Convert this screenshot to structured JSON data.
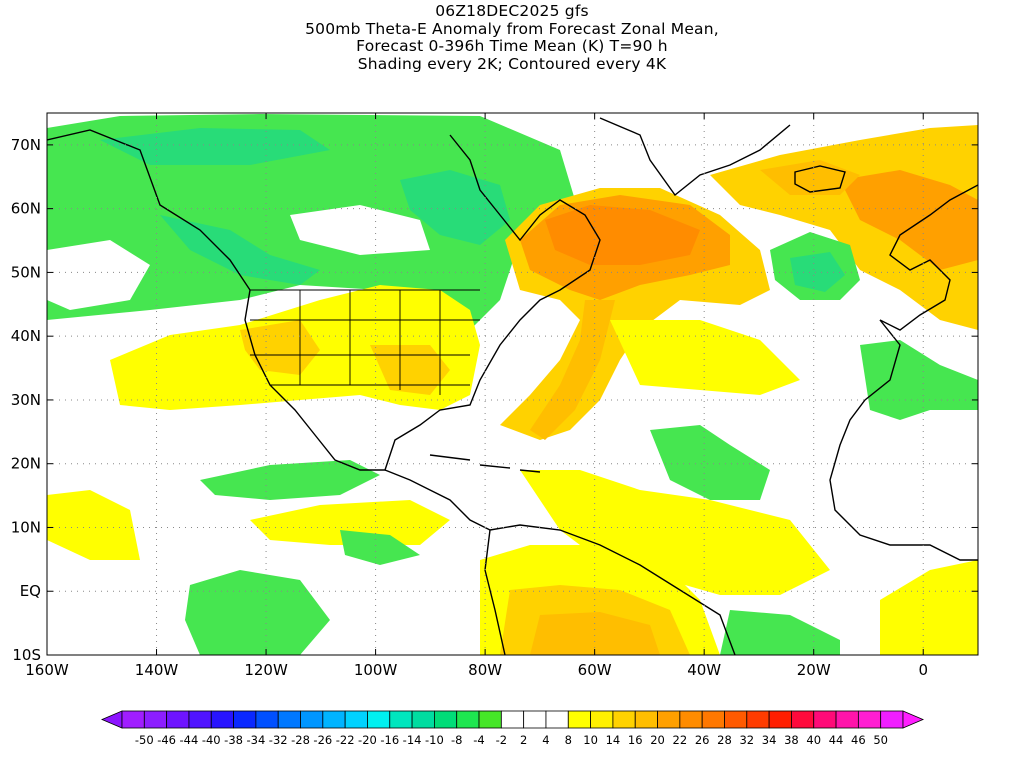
{
  "header": {
    "line1": "06Z18DEC2025 gfs",
    "line2": "500mb Theta-E Anomaly from Forecast Zonal Mean,",
    "line3": "Forecast 0-396h Time Mean (K) T=90 h",
    "line4": "Shading every 2K; Contoured every 4K"
  },
  "map": {
    "projection": "lat-lon",
    "lon_range": [
      -160,
      10
    ],
    "lat_range": [
      -10,
      75
    ],
    "gridlines": "dotted",
    "lon_ticks": [
      {
        "value": -160,
        "label": "160W"
      },
      {
        "value": -140,
        "label": "140W"
      },
      {
        "value": -120,
        "label": "120W"
      },
      {
        "value": -100,
        "label": "100W"
      },
      {
        "value": -80,
        "label": "80W"
      },
      {
        "value": -60,
        "label": "60W"
      },
      {
        "value": -40,
        "label": "40W"
      },
      {
        "value": -20,
        "label": "20W"
      },
      {
        "value": 0,
        "label": "0"
      }
    ],
    "lat_ticks": [
      {
        "value": 70,
        "label": "70N"
      },
      {
        "value": 60,
        "label": "60N"
      },
      {
        "value": 50,
        "label": "50N"
      },
      {
        "value": 40,
        "label": "40N"
      },
      {
        "value": 30,
        "label": "30N"
      },
      {
        "value": 20,
        "label": "20N"
      },
      {
        "value": 10,
        "label": "10N"
      },
      {
        "value": 0,
        "label": "EQ"
      },
      {
        "value": -10,
        "label": "10S"
      }
    ],
    "anomaly_regions": [
      {
        "name": "north-atlantic-warm-anomaly",
        "level": "warm",
        "color": "#f5a000"
      },
      {
        "name": "labrador-warm-core",
        "level": "hot",
        "color": "#f06a00"
      },
      {
        "name": "europe-warm-anomaly",
        "level": "warm",
        "color": "#f5c000"
      },
      {
        "name": "us-warm-anomaly",
        "level": "mild",
        "color": "#e6dc00"
      },
      {
        "name": "south-america-warm-anomaly",
        "level": "warm",
        "color": "#f0b000"
      },
      {
        "name": "canada-cool-anomaly",
        "level": "cool",
        "color": "#28dc6e"
      },
      {
        "name": "mid-atlantic-cool-anomaly",
        "level": "cool",
        "color": "#28dc6e"
      },
      {
        "name": "pacific-cool-anomaly",
        "level": "slight-cool",
        "color": "#46e650"
      }
    ]
  },
  "colorbar": {
    "labels": [
      "-50",
      "-46",
      "-44",
      "-40",
      "-38",
      "-34",
      "-32",
      "-28",
      "-26",
      "-22",
      "-20",
      "-16",
      "-14",
      "-10",
      "-8",
      "-4",
      "-2",
      "2",
      "4",
      "8",
      "10",
      "14",
      "16",
      "20",
      "22",
      "26",
      "28",
      "32",
      "34",
      "38",
      "40",
      "44",
      "46",
      "50"
    ],
    "colors": [
      "#a01eff",
      "#8c1eff",
      "#6e14ff",
      "#5014ff",
      "#2814ff",
      "#0a28ff",
      "#0050ff",
      "#0078ff",
      "#0096ff",
      "#00b4ff",
      "#00d2ff",
      "#00f0f0",
      "#00e6be",
      "#00dca0",
      "#00dc78",
      "#1ee650",
      "#46e628",
      "#ffffff",
      "#ffffff",
      "#ffffff",
      "#ffff00",
      "#fff000",
      "#ffd200",
      "#ffbe00",
      "#ffa000",
      "#ff8c00",
      "#ff7800",
      "#ff5a00",
      "#ff3c00",
      "#ff1e00",
      "#ff0a3c",
      "#ff0a78",
      "#ff14aa",
      "#ff1ed2",
      "#f01eff"
    ],
    "left_arrow_color": "#8c14ff",
    "right_arrow_color": "#ff1eff"
  }
}
